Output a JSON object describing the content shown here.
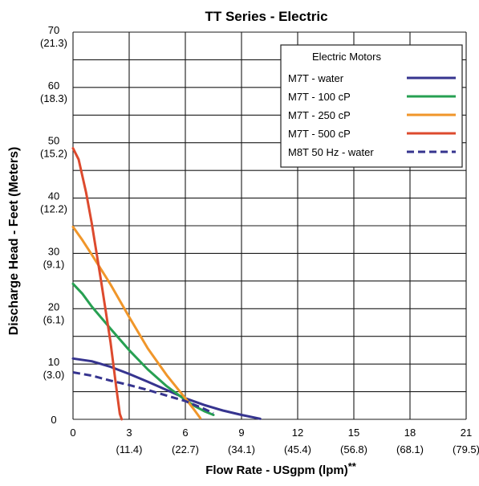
{
  "chart_data": {
    "type": "line",
    "title": "TT Series - Electric",
    "xlabel": "Flow Rate - USgpm (lpm)",
    "xlabel_suffix": "**",
    "ylabel": "Discharge Head - Feet (Meters)",
    "xlim": [
      0,
      21
    ],
    "ylim": [
      0,
      70
    ],
    "x_ticks": [
      {
        "value": 0,
        "label": "0",
        "sub": ""
      },
      {
        "value": 3,
        "label": "3",
        "sub": "(11.4)"
      },
      {
        "value": 6,
        "label": "6",
        "sub": "(22.7)"
      },
      {
        "value": 9,
        "label": "9",
        "sub": "(34.1)"
      },
      {
        "value": 12,
        "label": "12",
        "sub": "(45.4)"
      },
      {
        "value": 15,
        "label": "15",
        "sub": "(56.8)"
      },
      {
        "value": 18,
        "label": "18",
        "sub": "(68.1)"
      },
      {
        "value": 21,
        "label": "21",
        "sub": "(79.5)"
      }
    ],
    "y_ticks": [
      {
        "value": 0,
        "label": "0",
        "sub": ""
      },
      {
        "value": 10,
        "label": "10",
        "sub": "(3.0)"
      },
      {
        "value": 20,
        "label": "20",
        "sub": "(6.1)"
      },
      {
        "value": 30,
        "label": "30",
        "sub": "(9.1)"
      },
      {
        "value": 40,
        "label": "40",
        "sub": "(12.2)"
      },
      {
        "value": 50,
        "label": "50",
        "sub": "(15.2)"
      },
      {
        "value": 60,
        "label": "60",
        "sub": "(18.3)"
      },
      {
        "value": 70,
        "label": "70",
        "sub": "(21.3)"
      }
    ],
    "grid": true,
    "legend": {
      "title": "Electric Motors",
      "position": "top-right"
    },
    "series": [
      {
        "name": "M7T - water",
        "color": "#36348f",
        "dash": false,
        "points": [
          [
            0,
            11
          ],
          [
            1,
            10.5
          ],
          [
            2,
            9.5
          ],
          [
            3,
            8.2
          ],
          [
            4,
            6.8
          ],
          [
            5,
            5.3
          ],
          [
            6,
            3.8
          ],
          [
            7,
            2.6
          ],
          [
            8,
            1.6
          ],
          [
            9,
            0.8
          ],
          [
            10,
            0.1
          ]
        ]
      },
      {
        "name": "M7T - 100 cP",
        "color": "#27a052",
        "dash": false,
        "points": [
          [
            0,
            24.5
          ],
          [
            0.5,
            22.7
          ],
          [
            1,
            20.4
          ],
          [
            2,
            16.4
          ],
          [
            3,
            12.5
          ],
          [
            4,
            9
          ],
          [
            5,
            6
          ],
          [
            6,
            3.5
          ],
          [
            6.5,
            2.4
          ],
          [
            7,
            1.5
          ],
          [
            7.5,
            0.8
          ]
        ]
      },
      {
        "name": "M7T - 250 cP",
        "color": "#f0962a",
        "dash": false,
        "points": [
          [
            0,
            34.8
          ],
          [
            0.5,
            32.4
          ],
          [
            1,
            29.8
          ],
          [
            2,
            24.4
          ],
          [
            3,
            18.5
          ],
          [
            4,
            12.8
          ],
          [
            5,
            8
          ],
          [
            6,
            3.8
          ],
          [
            6.5,
            1.6
          ],
          [
            6.8,
            0.2
          ]
        ]
      },
      {
        "name": "M7T - 500 cP",
        "color": "#dd4a2e",
        "dash": false,
        "points": [
          [
            0,
            49
          ],
          [
            0.3,
            47
          ],
          [
            0.7,
            41
          ],
          [
            1,
            35.5
          ],
          [
            1.5,
            25
          ],
          [
            2,
            14
          ],
          [
            2.3,
            6
          ],
          [
            2.5,
            1
          ],
          [
            2.6,
            0
          ]
        ]
      },
      {
        "name": "M8T 50 Hz - water",
        "color": "#36348f",
        "dash": true,
        "points": [
          [
            0,
            8.5
          ],
          [
            1,
            7.9
          ],
          [
            2,
            7
          ],
          [
            3,
            6.2
          ],
          [
            4,
            5.3
          ],
          [
            5,
            4.3
          ],
          [
            6,
            3.3
          ],
          [
            7,
            1.9
          ],
          [
            7.5,
            1.1
          ]
        ]
      }
    ]
  }
}
